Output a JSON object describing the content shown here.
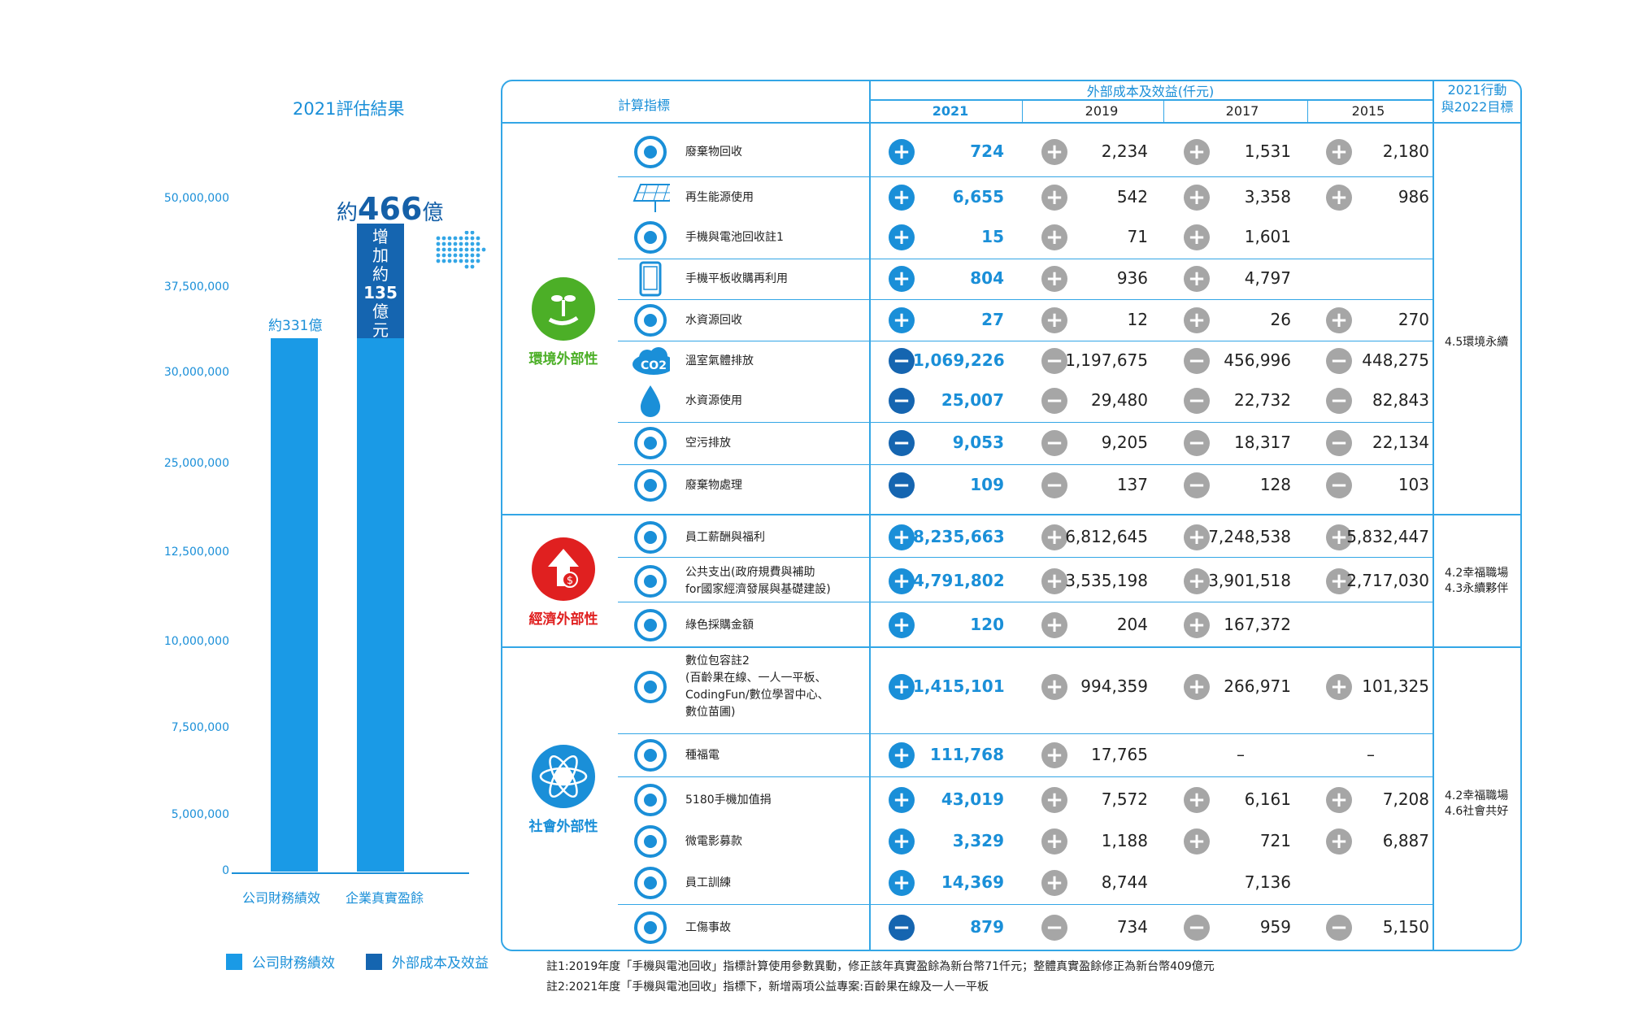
{
  "chart_data": {
    "type": "bar",
    "title": "2021評估結果",
    "categories": [
      "公司財務績效",
      "企業真實盈餘"
    ],
    "series": [
      {
        "name": "公司財務績效",
        "values": [
          33100000,
          33100000
        ]
      },
      {
        "name": "外部成本及效益",
        "values": [
          0,
          13500000
        ]
      }
    ],
    "yticks": [
      "50,000,000",
      "37,500,000",
      "30,000,000",
      "25,000,000",
      "12,500,000",
      "10,000,000",
      "7,500,000",
      "5,000,000",
      "0"
    ],
    "bar_labels": {
      "left": "約331億",
      "total_prefix": "約",
      "total_num": "466",
      "total_suffix": "億",
      "increase_lines": [
        "增",
        "加",
        "約",
        "135",
        "億",
        "元"
      ]
    },
    "legend": [
      {
        "label": "公司財務績效",
        "color": "#1a9ae6"
      },
      {
        "label": "外部成本及效益",
        "color": "#1565b0"
      }
    ],
    "colors": {
      "base": "#1a9ae6",
      "increase": "#1565b0"
    }
  },
  "table": {
    "header_indicator": "計算指標",
    "header_group": "外部成本及效益(仟元)",
    "header_goal_line1": "2021行動",
    "header_goal_line2": "與2022目標",
    "years": [
      "2021",
      "2019",
      "2017",
      "2015"
    ],
    "categories": [
      {
        "label": "環境外部性",
        "color": "#4caf27",
        "icon": "sprout-hand-icon"
      },
      {
        "label": "經濟外部性",
        "color": "#e02020",
        "icon": "arrow-up-money-icon"
      },
      {
        "label": "社會外部性",
        "color": "#1a8fd8",
        "icon": "globe-atom-icon"
      }
    ],
    "goals": [
      [
        "4.5環境永續"
      ],
      [
        "4.2幸福職場",
        "4.3永續夥伴"
      ],
      [
        "4.2幸福職場",
        "4.6社會共好"
      ]
    ],
    "rows": [
      {
        "icon": "recycle-icon",
        "lines": [
          "廢棄物回收"
        ],
        "signs": [
          "+",
          "+",
          "+",
          "+"
        ],
        "values": [
          "724",
          "2,234",
          "1,531",
          "2,180"
        ]
      },
      {
        "icon": "solar-panel-icon",
        "lines": [
          "再生能源使用"
        ],
        "signs": [
          "+",
          "+",
          "+",
          "+"
        ],
        "values": [
          "6,655",
          "542",
          "3,358",
          "986"
        ]
      },
      {
        "icon": "phone-recycle-icon",
        "lines": [
          "手機與電池回收註1"
        ],
        "signs": [
          "+",
          "+",
          "+",
          ""
        ],
        "values": [
          "15",
          "71",
          "1,601",
          ""
        ]
      },
      {
        "icon": "tablet-icon",
        "lines": [
          "手機平板收購再利用"
        ],
        "signs": [
          "+",
          "+",
          "+",
          ""
        ],
        "values": [
          "804",
          "936",
          "4,797",
          ""
        ]
      },
      {
        "icon": "water-recycle-icon",
        "lines": [
          "水資源回收"
        ],
        "signs": [
          "+",
          "+",
          "+",
          "+"
        ],
        "values": [
          "27",
          "12",
          "26",
          "270"
        ]
      },
      {
        "icon": "co2-cloud-icon",
        "lines": [
          "溫室氣體排放"
        ],
        "signs": [
          "-",
          "-",
          "-",
          "-"
        ],
        "values": [
          "1,069,226",
          "1,197,675",
          "456,996",
          "448,275"
        ]
      },
      {
        "icon": "water-drop-icon",
        "lines": [
          "水資源使用"
        ],
        "signs": [
          "-",
          "-",
          "-",
          "-"
        ],
        "values": [
          "25,007",
          "29,480",
          "22,732",
          "82,843"
        ]
      },
      {
        "icon": "factory-icon",
        "lines": [
          "空污排放"
        ],
        "signs": [
          "-",
          "-",
          "-",
          "-"
        ],
        "values": [
          "9,053",
          "9,205",
          "18,317",
          "22,134"
        ]
      },
      {
        "icon": "waste-bag-icon",
        "lines": [
          "廢棄物處理"
        ],
        "signs": [
          "-",
          "-",
          "-",
          "-"
        ],
        "values": [
          "109",
          "137",
          "128",
          "103"
        ]
      },
      {
        "icon": "employee-money-icon",
        "lines": [
          "員工薪酬與福利"
        ],
        "signs": [
          "+",
          "+",
          "+",
          "+"
        ],
        "values": [
          "8,235,663",
          "6,812,645",
          "7,248,538",
          "5,832,447"
        ]
      },
      {
        "icon": "public-spend-icon",
        "lines": [
          "公共支出(政府規費與補助",
          "for國家經濟發展與基礎建設)"
        ],
        "signs": [
          "+",
          "+",
          "+",
          "+"
        ],
        "values": [
          "4,791,802",
          "3,535,198",
          "3,901,518",
          "2,717,030"
        ]
      },
      {
        "icon": "green-buy-icon",
        "lines": [
          "綠色採購金額"
        ],
        "signs": [
          "+",
          "+",
          "+",
          ""
        ],
        "values": [
          "120",
          "204",
          "167,372",
          ""
        ]
      },
      {
        "icon": "digital-device-icon",
        "lines": [
          "數位包容註2",
          "(百齡果在線、一人一平板、",
          "CodingFun/數位學習中心、",
          "數位苗圃)"
        ],
        "signs": [
          "+",
          "+",
          "+",
          "+"
        ],
        "values": [
          "1,415,101",
          "994,359",
          "266,971",
          "101,325"
        ]
      },
      {
        "icon": "welfare-power-icon",
        "lines": [
          "種福電"
        ],
        "signs": [
          "+",
          "+",
          "",
          ""
        ],
        "values": [
          "111,768",
          "17,765",
          "–",
          "–"
        ]
      },
      {
        "icon": "donation-card-icon",
        "lines": [
          "5180手機加值捐"
        ],
        "signs": [
          "+",
          "+",
          "+",
          "+"
        ],
        "values": [
          "43,019",
          "7,572",
          "6,161",
          "7,208"
        ]
      },
      {
        "icon": "camera-icon",
        "lines": [
          "微電影募款"
        ],
        "signs": [
          "+",
          "+",
          "+",
          "+"
        ],
        "values": [
          "3,329",
          "1,188",
          "721",
          "6,887"
        ]
      },
      {
        "icon": "training-icon",
        "lines": [
          "員工訓練"
        ],
        "signs": [
          "+",
          "+",
          "",
          ""
        ],
        "values": [
          "14,369",
          "8,744",
          "7,136",
          ""
        ]
      },
      {
        "icon": "hospital-icon",
        "lines": [
          "工傷事故"
        ],
        "signs": [
          "-",
          "-",
          "-",
          "-"
        ],
        "values": [
          "879",
          "734",
          "959",
          "5,150"
        ]
      }
    ]
  },
  "notes": [
    "註1:2019年度「手機與電池回收」指標計算使用參數異動，修正該年真實盈餘為新台幣71仟元；整體真實盈餘修正為新台幣409億元",
    "註2:2021年度「手機與電池回收」指標下，新增兩項公益專案:百齡果在線及一人一平板"
  ]
}
